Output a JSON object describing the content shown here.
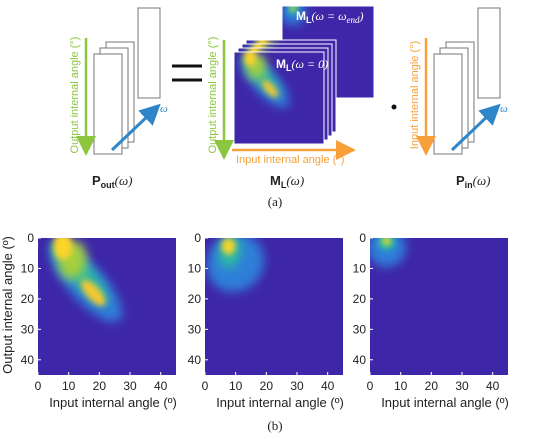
{
  "panel_a": {
    "label": "(a)",
    "p_out": {
      "symbol": "P",
      "subscript": "out",
      "argument": "(ω)"
    },
    "m_l": {
      "symbol": "M",
      "subscript": "L",
      "argument": "(ω)"
    },
    "p_in": {
      "symbol": "P",
      "subscript": "in",
      "argument": "(ω)"
    },
    "m_l_zero": {
      "symbol": "M",
      "subscript": "L",
      "argument": "(ω = 0)"
    },
    "m_l_end": {
      "symbol": "M",
      "subscript": "L",
      "argument": "(ω = ω",
      "argument_subscript": "end",
      "closing": ")"
    },
    "omega": "ω",
    "output_axis": "Output internal angle (°)",
    "input_axis": "Input internal angle (°)"
  },
  "panel_b": {
    "label": "(b)",
    "xlabel": "Input internal angle (º)",
    "ylabel": "Output internal angle (º)",
    "xlim": [
      0,
      45
    ],
    "ylim": [
      0,
      45
    ],
    "xticks": [
      0,
      10,
      20,
      30,
      40
    ],
    "yticks": [
      0,
      10,
      20,
      30,
      40
    ]
  }
}
